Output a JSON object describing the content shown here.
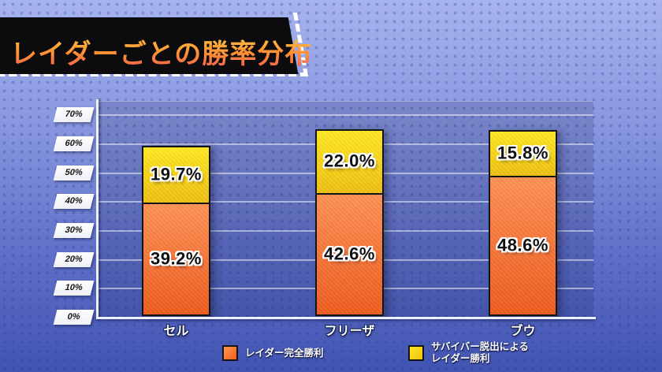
{
  "title": {
    "text": "レイダーごとの勝率分布"
  },
  "chart_data": {
    "type": "bar",
    "stacked": true,
    "title": "レイダーごとの勝率分布",
    "categories": [
      "セル",
      "フリーザ",
      "ブウ"
    ],
    "series": [
      {
        "name": "レイダー完全勝利",
        "color": "orange",
        "values": [
          39.2,
          42.6,
          48.6
        ],
        "labels": [
          "39.2%",
          "42.6%",
          "48.6%"
        ]
      },
      {
        "name": "サバイバー脱出によるレイダー勝利",
        "color": "yellow",
        "values": [
          19.7,
          22.0,
          15.8
        ],
        "labels": [
          "19.7%",
          "22.0%",
          "15.8%"
        ]
      }
    ],
    "yticks": [
      "0%",
      "10%",
      "20%",
      "30%",
      "40%",
      "50%",
      "60%",
      "70%"
    ],
    "ylim": [
      0,
      75
    ],
    "grid": true,
    "legend_position": "bottom"
  },
  "legend": {
    "items": [
      {
        "color": "orange",
        "lines": [
          "レイダー完全勝利"
        ]
      },
      {
        "color": "yellow",
        "lines": [
          "サバイバー脱出による",
          "レイダー勝利"
        ]
      }
    ]
  },
  "colors": {
    "orange_top": "#fe9154",
    "orange_bottom": "#ee5c1e",
    "yellow_top": "#ffe822",
    "yellow_bottom": "#eec011",
    "background_top": "#a6b3ee",
    "background_bottom": "#4254b2",
    "banner_black": "#0c0c0e",
    "title_gradient_top": "#ffce44",
    "title_gradient_bottom": "#f15b52",
    "axis_white": "#eef1fb"
  }
}
